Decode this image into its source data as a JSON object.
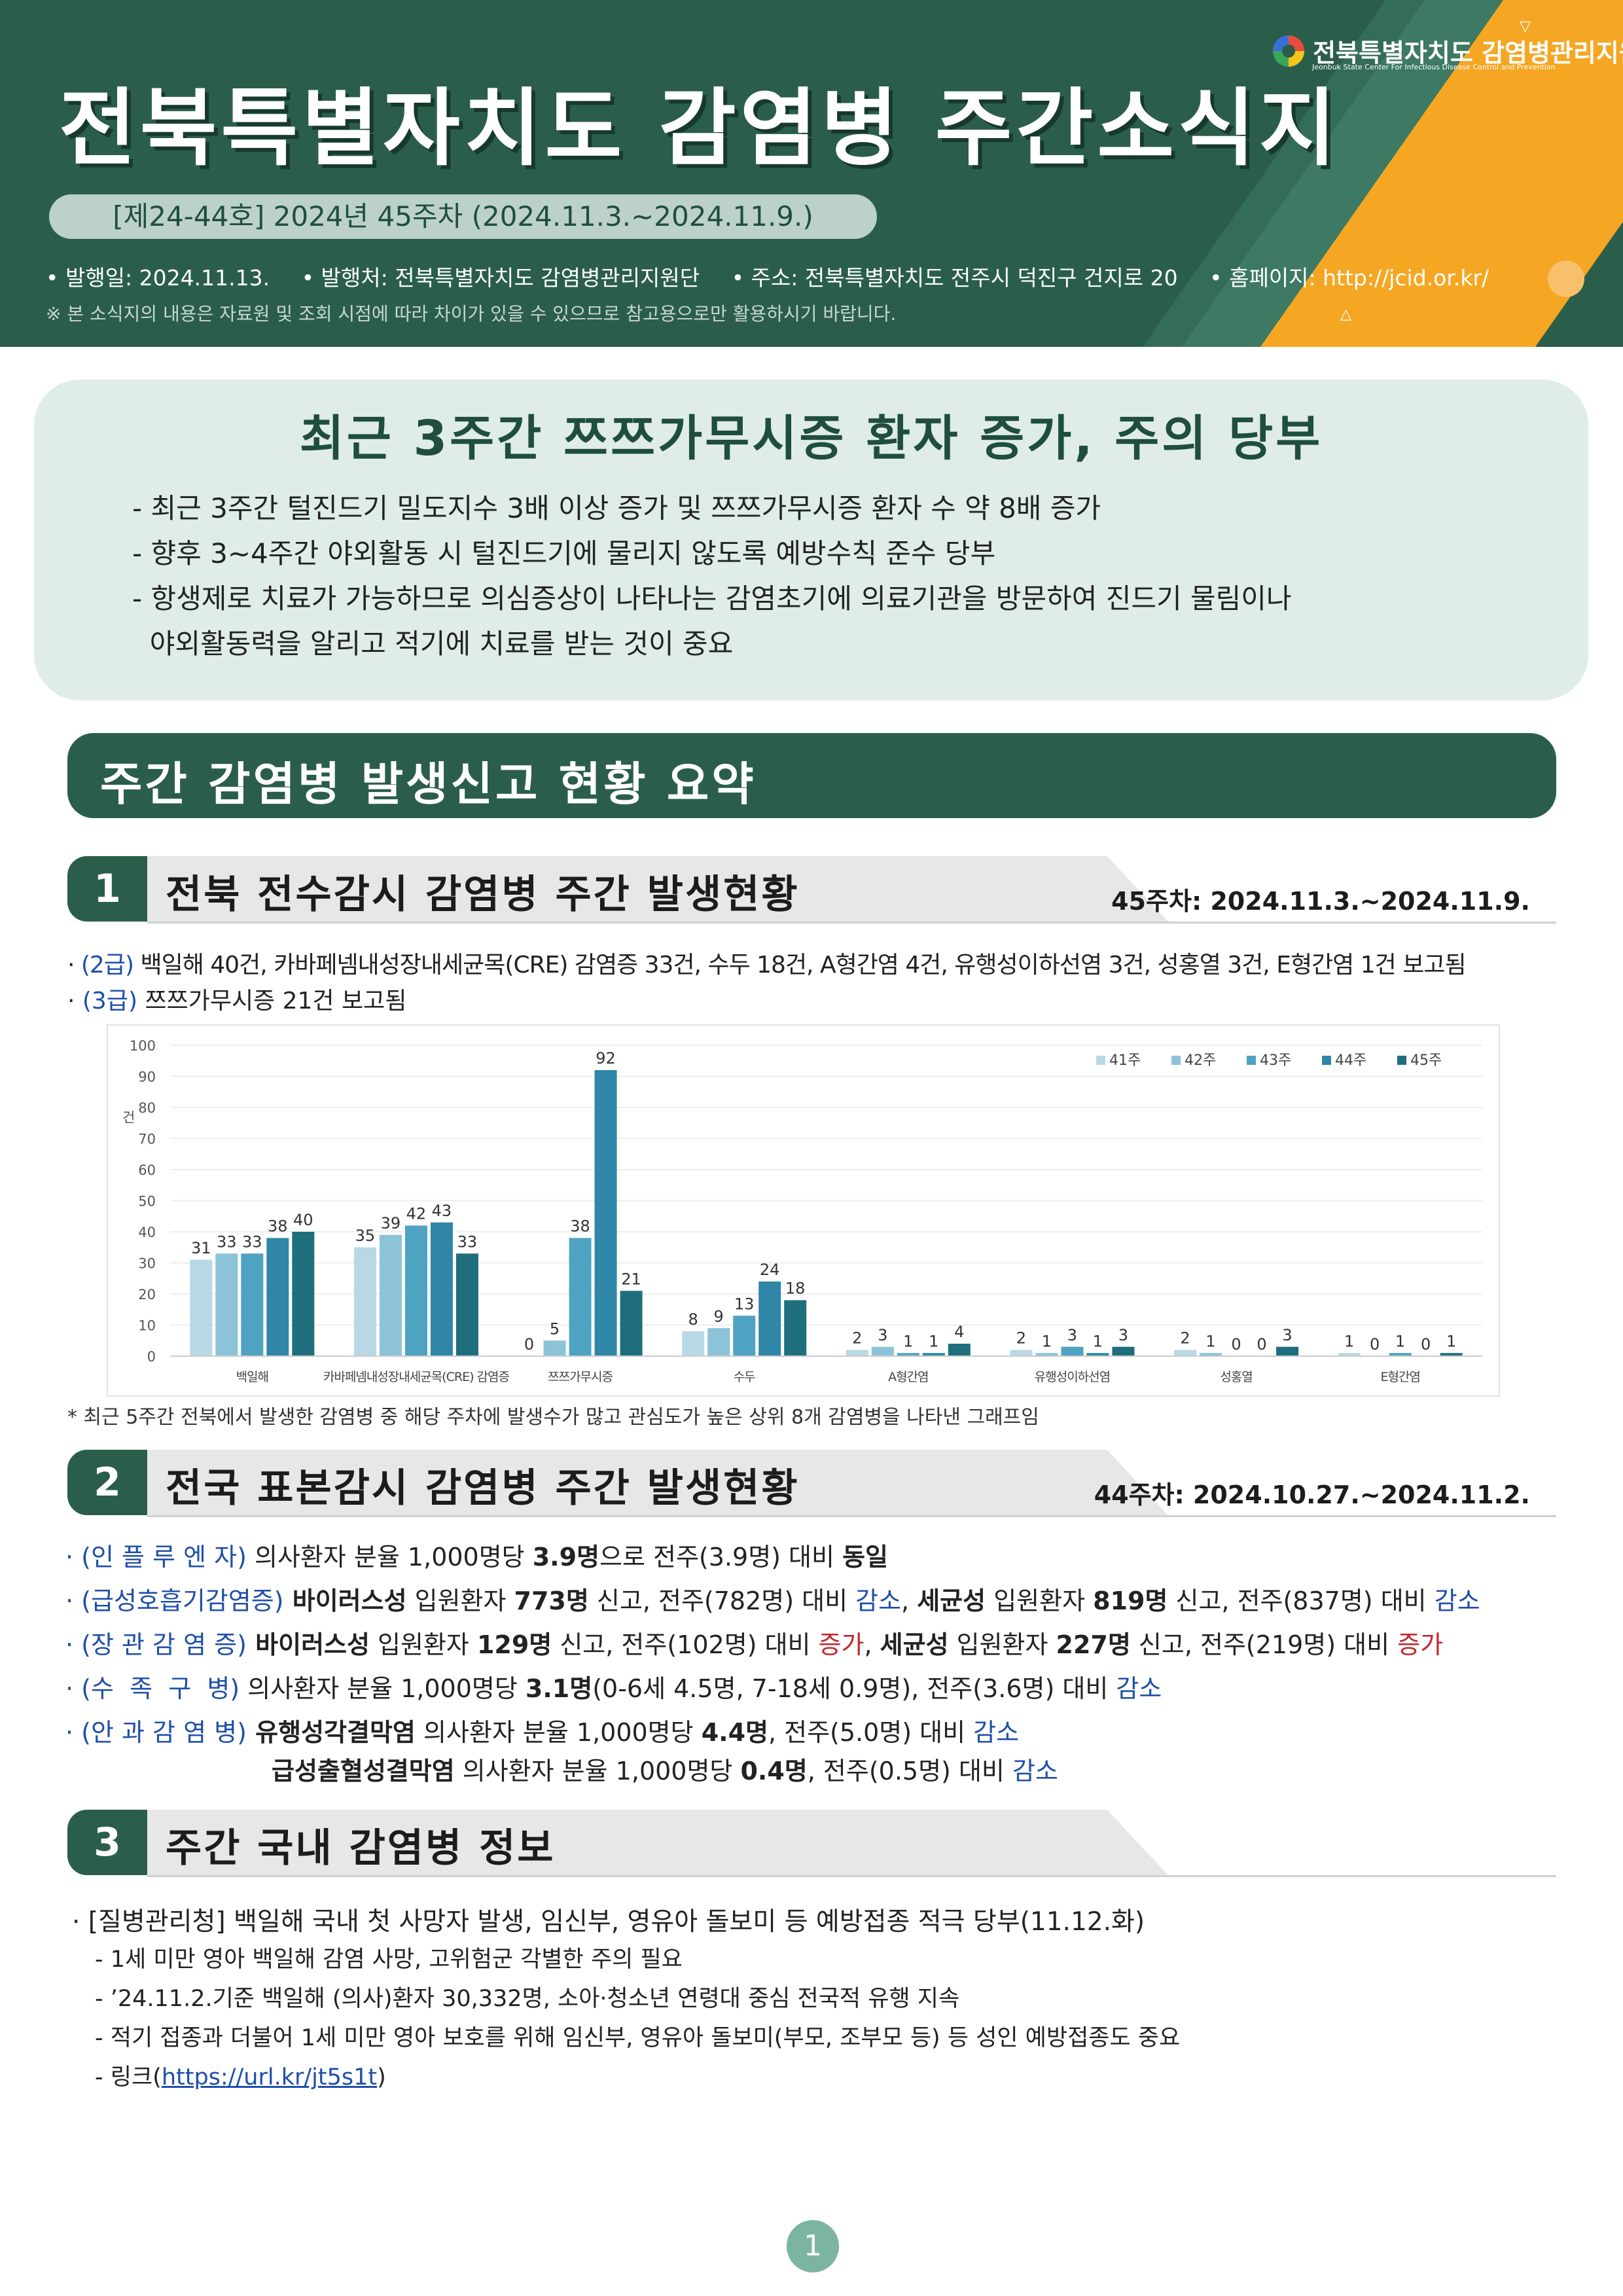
{
  "header": {
    "title": "전북특별자치도  감염병  주간소식지",
    "issue": "[제24-44호] 2024년 45주차 (2024.11.3.~2024.11.9.)",
    "publish_date": "• 발행일: 2024.11.13.",
    "publisher": "• 발행처: 전북특별자치도 감염병관리지원단",
    "address": "• 주소: 전북특별자치도 전주시 덕진구 건지로 20",
    "homepage": "• 홈페이지: http://jcid.or.kr/",
    "notice": "※ 본 소식지의 내용은 자료원 및 조회 시점에 따라 차이가 있을 수 있으므로 참고용으로만 활용하시기 바랍니다.",
    "logo_name": "전북특별자치도 감염병관리지원단",
    "logo_sub": "Jeonbuk State Center For Infectious Disease Control and Prevention"
  },
  "highlight": {
    "title": "최근 3주간 쯔쯔가무시증 환자 증가, 주의 당부",
    "items": [
      "- 최근 3주간 털진드기 밀도지수 3배 이상 증가 및 쯔쯔가무시증 환자 수 약 8배 증가",
      "- 향후 3~4주간 야외활동 시 털진드기에 물리지 않도록 예방수칙 준수 당부",
      "- 항생제로 치료가 가능하므로 의심증상이 나타나는 감염초기에 의료기관을 방문하여 진드기 물림이나",
      "  야외활동력을 알리고 적기에 치료를 받는 것이 중요"
    ]
  },
  "summary_title": "주간 감염병 발생신고 현황 요약",
  "section1": {
    "num": "1",
    "title": "전북 전수감시 감염병 주간 발생현황",
    "date": "45주차: 2024.11.3.~2024.11.9.",
    "grade2_label": "(2급)",
    "grade2_text": " 백일해 40건, 카바페넴내성장내세균목(CRE) 감염증 33건, 수두 18건, A형간염 4건, 유행성이하선염 3건, 성홍열 3건, E형간염 1건 보고됨",
    "grade3_label": "(3급)",
    "grade3_text": " 쯔쯔가무시증 21건 보고됨",
    "footnote": "* 최근 5주간 전북에서 발생한 감염병 중 해당 주차에 발생수가 많고 관심도가 높은 상위 8개 감염병을 나타낸 그래프임"
  },
  "chart_data": {
    "type": "bar",
    "ylabel": "건",
    "ylim": [
      0,
      100
    ],
    "yticks": [
      0,
      10,
      20,
      30,
      40,
      50,
      60,
      70,
      80,
      90,
      100
    ],
    "categories": [
      "백일해",
      "카바페넴내성장내세균목(CRE) 감염증",
      "쯔쯔가무시증",
      "수두",
      "A형간염",
      "유행성이하선염",
      "성홍열",
      "E형간염"
    ],
    "series": [
      {
        "name": "41주",
        "color": "#b8d8e5",
        "values": [
          31,
          35,
          0,
          8,
          2,
          2,
          2,
          1
        ]
      },
      {
        "name": "42주",
        "color": "#8cc3d8",
        "values": [
          33,
          39,
          5,
          9,
          3,
          1,
          1,
          0
        ]
      },
      {
        "name": "43주",
        "color": "#4fa3c2",
        "values": [
          33,
          42,
          38,
          13,
          1,
          3,
          0,
          1
        ]
      },
      {
        "name": "44주",
        "color": "#2f86a6",
        "values": [
          38,
          43,
          92,
          24,
          1,
          1,
          0,
          0
        ]
      },
      {
        "name": "45주",
        "color": "#1f6e7e",
        "values": [
          40,
          33,
          21,
          18,
          4,
          3,
          3,
          1
        ]
      }
    ],
    "legend": "top-right",
    "grid": true
  },
  "section2": {
    "num": "2",
    "title": "전국 표본감시 감염병 주간 발생현황",
    "date": "44주차: 2024.10.27.~2024.11.2.",
    "flu_label": "· (인 플 루 엔 자)",
    "flu_a": " 의사환자 분율 1,000명당 ",
    "flu_b": "3.9명",
    "flu_c": "으로 전주(3.9명) 대비 ",
    "flu_d": "동일",
    "ari_label": "· (급성호흡기감염증)",
    "ari_a": " 바이러스성",
    "ari_b": " 입원환자 ",
    "ari_c": "773명",
    "ari_d": " 신고, 전주(782명) 대비 ",
    "ari_e": "감소",
    "ari_f": ", ",
    "ari_g": "세균성",
    "ari_h": " 입원환자 ",
    "ari_i": "819명",
    "ari_j": " 신고, 전주(837명) 대비 ",
    "ari_k": "감소",
    "ent_label": "· (장 관 감 염 증)",
    "ent_a": " 바이러스성",
    "ent_b": " 입원환자 ",
    "ent_c": "129명",
    "ent_d": " 신고, 전주(102명) 대비 ",
    "ent_e": "증가",
    "ent_f": ", ",
    "ent_g": "세균성",
    "ent_h": " 입원환자 ",
    "ent_i": "227명",
    "ent_j": " 신고, 전주(219명) 대비 ",
    "ent_k": "증가",
    "hfm_label": "· (수  족  구  병)",
    "hfm_a": " 의사환자 분율 1,000명당 ",
    "hfm_b": "3.1명",
    "hfm_c": "(0-6세 4.5명, 7-18세 0.9명), 전주(3.6명) 대비 ",
    "hfm_d": "감소",
    "eye_label": "· (안 과 감 염 병)",
    "eye_a": " 유행성각결막염",
    "eye_b": " 의사환자 분율 1,000명당 ",
    "eye_c": "4.4명",
    "eye_d": ", 전주(5.0명) 대비 ",
    "eye_e": "감소",
    "eye2_a": "급성출혈성결막염",
    "eye2_b": " 의사환자 분율 1,000명당 ",
    "eye2_c": "0.4명",
    "eye2_d": ", 전주(0.5명) 대비 ",
    "eye2_e": "감소"
  },
  "section3": {
    "num": "3",
    "title": "주간 국내 감염병 정보",
    "headline": "· [질병관리청] 백일해 국내 첫 사망자 발생, 임신부, 영유아 돌보미 등 예방접종 적극 당부(11.12.화)",
    "items": [
      "- 1세 미만 영아 백일해 감염 사망, 고위험군 각별한 주의 필요",
      "- ’24.11.2.기준 백일해 (의사)환자 30,332명, 소아·청소년 연령대 중심 전국적 유행 지속",
      "- 적기 접종과 더불어 1세 미만 영아 보호를 위해 임신부, 영유아 돌보미(부모, 조부모 등) 등 성인 예방접종도 중요"
    ],
    "link_prefix": "- 링크(",
    "link_text": "https://url.kr/jt5s1t",
    "link_suffix": ")"
  },
  "page_number": "1"
}
